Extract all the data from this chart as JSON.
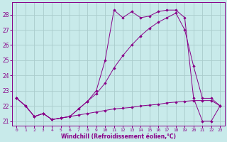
{
  "background_color": "#c8eaea",
  "grid_color": "#aacccc",
  "line_color": "#880088",
  "marker_color": "#880088",
  "xlim": [
    -0.5,
    23.5
  ],
  "ylim": [
    20.7,
    28.8
  ],
  "yticks": [
    21,
    22,
    23,
    24,
    25,
    26,
    27,
    28
  ],
  "xticks": [
    0,
    1,
    2,
    3,
    4,
    5,
    6,
    7,
    8,
    9,
    10,
    11,
    12,
    13,
    14,
    15,
    16,
    17,
    18,
    19,
    20,
    21,
    22,
    23
  ],
  "xlabel": "Windchill (Refroidissement éolien,°C)",
  "series1_x": [
    0,
    1,
    2,
    3,
    4,
    5,
    6,
    7,
    8,
    9,
    10,
    11,
    12,
    13,
    14,
    15,
    16,
    17,
    18,
    19,
    20,
    21,
    22,
    23
  ],
  "series1_y": [
    22.5,
    22.0,
    21.3,
    21.5,
    21.1,
    21.2,
    21.3,
    21.4,
    21.5,
    21.6,
    21.7,
    21.8,
    21.85,
    21.9,
    22.0,
    22.05,
    22.1,
    22.2,
    22.25,
    22.3,
    22.35,
    22.35,
    22.35,
    22.0
  ],
  "series2_x": [
    0,
    1,
    2,
    3,
    4,
    5,
    6,
    7,
    8,
    9,
    10,
    11,
    12,
    13,
    14,
    15,
    16,
    17,
    18,
    19,
    20,
    21,
    22,
    23
  ],
  "series2_y": [
    22.5,
    22.0,
    21.3,
    21.5,
    21.1,
    21.2,
    21.3,
    21.8,
    22.3,
    23.0,
    25.0,
    28.3,
    27.8,
    28.2,
    27.8,
    27.9,
    28.2,
    28.3,
    28.3,
    27.8,
    22.5,
    21.0,
    21.0,
    22.0
  ],
  "series3_x": [
    0,
    1,
    2,
    3,
    4,
    5,
    6,
    7,
    8,
    9,
    10,
    11,
    12,
    13,
    14,
    15,
    16,
    17,
    18,
    19,
    20,
    21,
    22,
    23
  ],
  "series3_y": [
    22.5,
    22.0,
    21.3,
    21.5,
    21.1,
    21.2,
    21.3,
    21.8,
    22.3,
    22.8,
    23.5,
    24.5,
    25.3,
    26.0,
    26.6,
    27.1,
    27.5,
    27.8,
    28.1,
    27.0,
    24.6,
    22.5,
    22.5,
    22.0
  ]
}
